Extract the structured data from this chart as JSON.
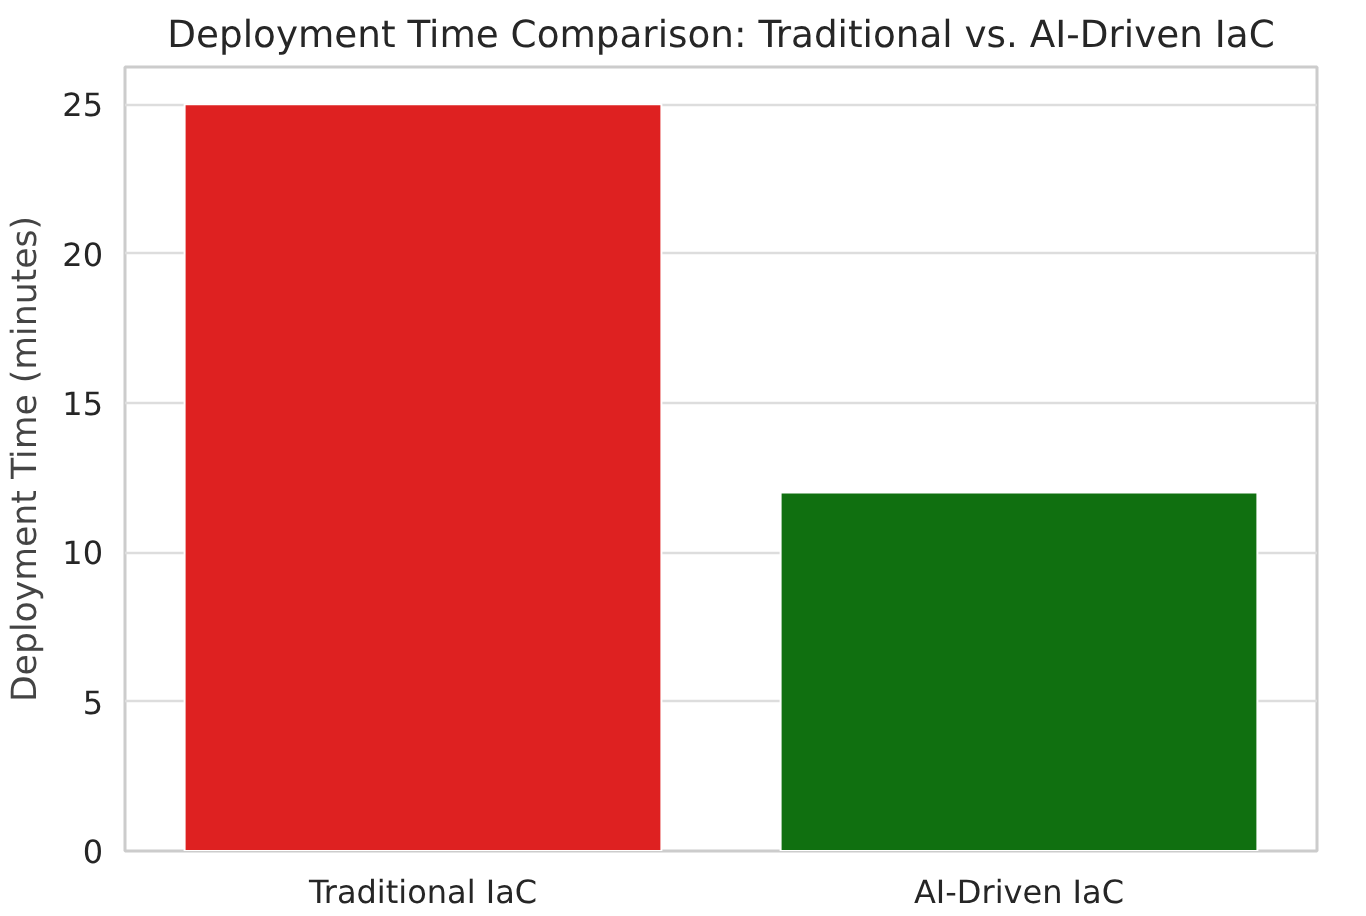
{
  "chart_data": {
    "type": "bar",
    "title": "Deployment Time Comparison: Traditional vs. AI-Driven IaC",
    "ylabel": "Deployment Time (minutes)",
    "categories": [
      "Traditional IaC",
      "AI-Driven IaC"
    ],
    "values": [
      25,
      12
    ],
    "colors": [
      "#de2121",
      "#107010"
    ],
    "ylim": [
      0,
      26.25
    ],
    "yticks": [
      0,
      5,
      10,
      15,
      20,
      25
    ],
    "grid": "y"
  }
}
